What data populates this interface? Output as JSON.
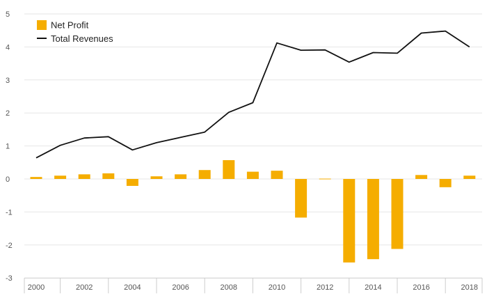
{
  "chart_data": {
    "type": "bar+line",
    "title": "",
    "xlabel": "",
    "ylabel": "",
    "x": [
      2000,
      2001,
      2002,
      2003,
      2004,
      2005,
      2006,
      2007,
      2008,
      2009,
      2010,
      2011,
      2012,
      2013,
      2014,
      2015,
      2016,
      2017,
      2018
    ],
    "x_tick_labels": [
      "2000",
      "2002",
      "2004",
      "2006",
      "2008",
      "2010",
      "2012",
      "2014",
      "2016",
      "2018"
    ],
    "y_tick_labels": [
      "5",
      "4",
      "3",
      "2",
      "1",
      "0",
      "-1",
      "-2",
      "-3"
    ],
    "ylim": [
      -3,
      5
    ],
    "grid": true,
    "legend_position": "top-left",
    "series": [
      {
        "name": "Net Profit",
        "type": "bar",
        "color": "#f5ad00",
        "values": [
          0.06,
          0.1,
          0.14,
          0.17,
          -0.21,
          0.08,
          0.14,
          0.27,
          0.57,
          0.22,
          0.25,
          -1.17,
          0.01,
          -2.53,
          -2.43,
          -2.12,
          0.12,
          -0.25,
          0.1
        ]
      },
      {
        "name": "Total Revenues",
        "type": "line",
        "color": "#111111",
        "values": [
          0.64,
          1.02,
          1.24,
          1.28,
          0.88,
          1.1,
          1.26,
          1.42,
          2.02,
          2.31,
          4.12,
          3.9,
          3.91,
          3.54,
          3.83,
          3.81,
          4.42,
          4.48,
          4.0
        ]
      }
    ]
  }
}
